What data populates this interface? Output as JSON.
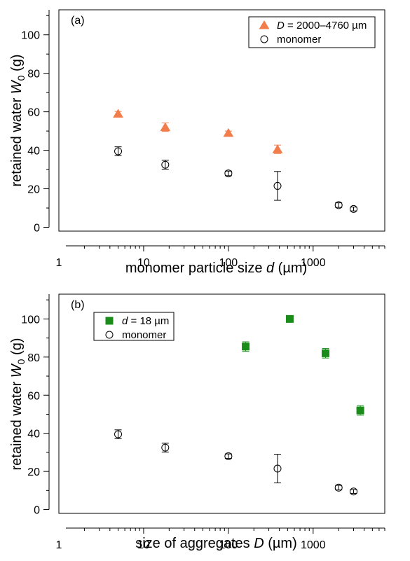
{
  "chart_data": [
    {
      "type": "scatter",
      "panel_label": "(a)",
      "xlabel_prefix": "monomer particle size ",
      "xlabel_var": "d",
      "xlabel_suffix": " (µm)",
      "ylabel_prefix": "retained water ",
      "ylabel_var": "W",
      "ylabel_sub": "0",
      "ylabel_suffix": " (g)",
      "x_scale": "log",
      "xlim": [
        1,
        7000
      ],
      "ylim": [
        -2,
        113
      ],
      "x_ticks": [
        1,
        10,
        100,
        1000
      ],
      "x_tick_labels": [
        "1",
        "10",
        "100",
        "1000"
      ],
      "y_ticks": [
        0,
        20,
        40,
        60,
        80,
        100
      ],
      "y_tick_labels": [
        "0",
        "20",
        "40",
        "60",
        "80",
        "100"
      ],
      "grid": false,
      "legend_position": "top-right",
      "series": [
        {
          "legend_var": "D",
          "legend_rest": " = 2000–4760 µm",
          "marker": "triangle",
          "color": "#F27C4A",
          "x": [
            5,
            18,
            100,
            380
          ],
          "y": [
            59,
            52,
            49,
            40.5
          ],
          "err": [
            1.2,
            2.2,
            1.0,
            2.2
          ]
        },
        {
          "legend_var": "",
          "legend_rest": "monomer",
          "marker": "circle-open",
          "color": "#000000",
          "x": [
            5,
            18,
            100,
            380,
            2000,
            3000
          ],
          "y": [
            39.5,
            32.5,
            28,
            21.5,
            11.5,
            9.5
          ],
          "err": [
            2.3,
            2.3,
            1.2,
            7.5,
            1.2,
            1.0
          ]
        }
      ]
    },
    {
      "type": "scatter",
      "panel_label": "(b)",
      "xlabel_prefix": "size of aggregates ",
      "xlabel_var": "D",
      "xlabel_suffix": " (µm)",
      "ylabel_prefix": "retained water ",
      "ylabel_var": "W",
      "ylabel_sub": "0",
      "ylabel_suffix": " (g)",
      "x_scale": "log",
      "xlim": [
        1,
        7000
      ],
      "ylim": [
        -2,
        113
      ],
      "x_ticks": [
        1,
        10,
        100,
        1000
      ],
      "x_tick_labels": [
        "1",
        "10",
        "100",
        "1000"
      ],
      "y_ticks": [
        0,
        20,
        40,
        60,
        80,
        100
      ],
      "y_tick_labels": [
        "0",
        "20",
        "40",
        "60",
        "80",
        "100"
      ],
      "grid": false,
      "legend_position": "top-left",
      "series": [
        {
          "legend_var": "d",
          "legend_rest": " = 18 µm",
          "marker": "square",
          "color": "#1A8C1A",
          "x": [
            160,
            530,
            1400,
            3600
          ],
          "y": [
            85.5,
            100,
            82,
            52
          ],
          "err": [
            2.5,
            0.8,
            2.5,
            2.5
          ]
        },
        {
          "legend_var": "",
          "legend_rest": "monomer",
          "marker": "circle-open",
          "color": "#000000",
          "x": [
            5,
            18,
            100,
            380,
            2000,
            3000
          ],
          "y": [
            39.5,
            32.5,
            28,
            21.5,
            11.5,
            9.5
          ],
          "err": [
            2.3,
            2.3,
            1.2,
            7.5,
            1.2,
            1.0
          ]
        }
      ]
    }
  ]
}
